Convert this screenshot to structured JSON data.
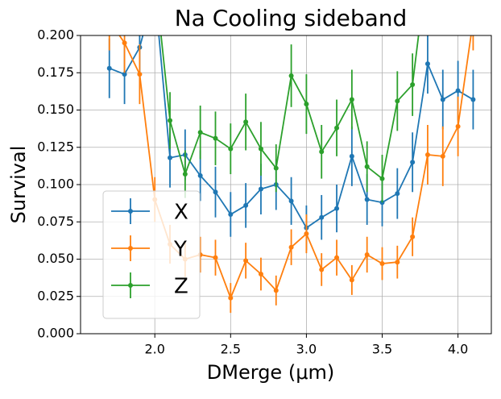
{
  "chart_data": {
    "type": "line",
    "title": "Na Cooling sideband",
    "xlabel": "DMerge (μm)",
    "ylabel": "Survival",
    "x": [
      1.7,
      1.8,
      1.9,
      2.0,
      2.1,
      2.2,
      2.3,
      2.4,
      2.5,
      2.6,
      2.7,
      2.8,
      2.9,
      3.0,
      3.1,
      3.2,
      3.3,
      3.4,
      3.5,
      3.6,
      3.7,
      3.8,
      3.9,
      4.0,
      4.1
    ],
    "series": [
      {
        "name": "X",
        "color": "#1f77b4",
        "values": [
          0.178,
          0.174,
          0.192,
          0.23,
          0.118,
          0.12,
          0.106,
          0.095,
          0.08,
          0.086,
          0.097,
          0.1,
          0.089,
          0.071,
          0.078,
          0.084,
          0.119,
          0.09,
          0.088,
          0.094,
          0.115,
          0.181,
          0.157,
          0.163,
          0.157
        ],
        "errors": [
          0.02,
          0.02,
          0.02,
          0.02,
          0.02,
          0.017,
          0.017,
          0.017,
          0.015,
          0.015,
          0.017,
          0.017,
          0.016,
          0.015,
          0.015,
          0.016,
          0.02,
          0.017,
          0.016,
          0.017,
          0.02,
          0.02,
          0.02,
          0.02,
          0.02
        ]
      },
      {
        "name": "Y",
        "color": "#ff7f0e",
        "values": [
          0.21,
          0.195,
          0.174,
          0.09,
          0.06,
          0.05,
          0.053,
          0.051,
          0.024,
          0.049,
          0.04,
          0.029,
          0.058,
          0.067,
          0.043,
          0.051,
          0.036,
          0.053,
          0.047,
          0.048,
          0.065,
          0.12,
          0.119,
          0.139,
          0.21
        ],
        "errors": [
          0.02,
          0.02,
          0.02,
          0.015,
          0.013,
          0.012,
          0.012,
          0.012,
          0.01,
          0.012,
          0.011,
          0.01,
          0.012,
          0.013,
          0.011,
          0.012,
          0.01,
          0.012,
          0.011,
          0.011,
          0.013,
          0.02,
          0.02,
          0.02,
          0.02
        ]
      },
      {
        "name": "Z",
        "color": "#2ca02c",
        "values": [
          null,
          null,
          null,
          0.24,
          0.143,
          0.107,
          0.135,
          0.131,
          0.124,
          0.142,
          0.124,
          0.111,
          0.173,
          0.154,
          0.122,
          0.138,
          0.157,
          0.112,
          0.104,
          0.156,
          0.167,
          0.25,
          null,
          null,
          null
        ],
        "errors": [
          null,
          null,
          null,
          0.02,
          0.019,
          0.016,
          0.018,
          0.018,
          0.017,
          0.019,
          0.018,
          0.016,
          0.021,
          0.02,
          0.018,
          0.019,
          0.02,
          0.017,
          0.016,
          0.02,
          0.021,
          0.02,
          null,
          null,
          null
        ]
      }
    ],
    "xlim": [
      1.51,
      4.22
    ],
    "ylim": [
      0,
      0.2
    ],
    "xticks": [
      {
        "value": 2,
        "label": "2.0"
      },
      {
        "value": 2.5,
        "label": "2.5"
      },
      {
        "value": 3,
        "label": "3.0"
      },
      {
        "value": 3.5,
        "label": "3.5"
      },
      {
        "value": 4,
        "label": "4.0"
      }
    ],
    "yticks": [
      {
        "value": 0,
        "label": "0.000"
      },
      {
        "value": 0.025,
        "label": "0.025"
      },
      {
        "value": 0.05,
        "label": "0.050"
      },
      {
        "value": 0.075,
        "label": "0.075"
      },
      {
        "value": 0.1,
        "label": "0.100"
      },
      {
        "value": 0.125,
        "label": "0.125"
      },
      {
        "value": 0.15,
        "label": "0.150"
      },
      {
        "value": 0.175,
        "label": "0.175"
      },
      {
        "value": 0.2,
        "label": "0.200"
      }
    ],
    "grid": true,
    "legend": "lower left"
  }
}
